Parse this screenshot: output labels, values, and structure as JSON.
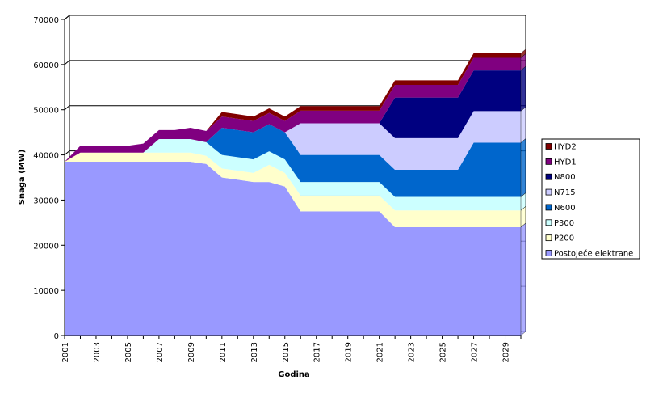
{
  "chart_data": {
    "type": "area",
    "stacked": true,
    "title": "",
    "xlabel": "Godina",
    "ylabel": "Snaga (MW)",
    "ylim": [
      0,
      70000
    ],
    "yticks": [
      0,
      10000,
      20000,
      30000,
      40000,
      50000,
      60000,
      70000
    ],
    "ytick_labels": [
      "0",
      "10000",
      "20000",
      "30000",
      "40000",
      "50000",
      "60000",
      "70000"
    ],
    "x": [
      2001,
      2002,
      2003,
      2004,
      2005,
      2006,
      2007,
      2008,
      2009,
      2010,
      2011,
      2012,
      2013,
      2014,
      2015,
      2016,
      2017,
      2018,
      2019,
      2020,
      2021,
      2022,
      2023,
      2024,
      2025,
      2026,
      2027,
      2028,
      2029,
      2030
    ],
    "xtick_labels": [
      "2001",
      "2003",
      "2005",
      "2007",
      "2009",
      "2011",
      "2013",
      "2015",
      "2017",
      "2019",
      "2021",
      "2023",
      "2025",
      "2027",
      "2029"
    ],
    "grid": "horizontal",
    "legend_position": "right",
    "series": [
      {
        "name": "Postojeće elektrane",
        "color": "#9999ff",
        "values": [
          38500,
          38500,
          38500,
          38500,
          38500,
          38500,
          38500,
          38500,
          38500,
          38000,
          35000,
          34500,
          34000,
          34000,
          33000,
          27500,
          27500,
          27500,
          27500,
          27500,
          27500,
          24000,
          24000,
          24000,
          24000,
          24000,
          24000,
          24000,
          24000,
          24000
        ]
      },
      {
        "name": "P200",
        "color": "#ffffcc",
        "values": [
          0,
          2000,
          2000,
          2000,
          2000,
          2000,
          2000,
          2000,
          2000,
          1800,
          2000,
          2000,
          2000,
          3800,
          3000,
          3500,
          3500,
          3500,
          3500,
          3500,
          3500,
          3700,
          3700,
          3700,
          3700,
          3700,
          3700,
          3700,
          3700,
          3700
        ]
      },
      {
        "name": "P300",
        "color": "#ccffff",
        "values": [
          0,
          0,
          0,
          0,
          0,
          0,
          3000,
          3000,
          3000,
          3000,
          3000,
          3000,
          3000,
          3000,
          3000,
          3000,
          3000,
          3000,
          3000,
          3000,
          3000,
          3000,
          3000,
          3000,
          3000,
          3000,
          3000,
          3000,
          3000,
          3000
        ]
      },
      {
        "name": "N600",
        "color": "#0066cc",
        "values": [
          0,
          0,
          0,
          0,
          0,
          0,
          0,
          0,
          0,
          0,
          6000,
          6000,
          6000,
          6000,
          6000,
          6000,
          6000,
          6000,
          6000,
          6000,
          6000,
          6000,
          6000,
          6000,
          6000,
          6000,
          12000,
          12000,
          12000,
          12000
        ]
      },
      {
        "name": "N715",
        "color": "#ccccff",
        "values": [
          0,
          0,
          0,
          0,
          0,
          0,
          0,
          0,
          0,
          0,
          0,
          0,
          0,
          0,
          0,
          7000,
          7000,
          7000,
          7000,
          7000,
          7000,
          7000,
          7000,
          7000,
          7000,
          7000,
          7000,
          7000,
          7000,
          7000
        ]
      },
      {
        "name": "N800",
        "color": "#000080",
        "values": [
          0,
          0,
          0,
          0,
          0,
          0,
          0,
          0,
          0,
          0,
          0,
          0,
          0,
          0,
          0,
          0,
          0,
          0,
          0,
          0,
          0,
          9000,
          9000,
          9000,
          9000,
          9000,
          9000,
          9000,
          9000,
          9000
        ]
      },
      {
        "name": "HYD1",
        "color": "#800080",
        "values": [
          0,
          1500,
          1500,
          1500,
          1500,
          2000,
          2000,
          2000,
          2500,
          2500,
          2500,
          2500,
          2500,
          2500,
          2500,
          2800,
          2800,
          2800,
          2800,
          2800,
          2800,
          2800,
          2800,
          2800,
          2800,
          2800,
          2800,
          2800,
          2800,
          2800
        ]
      },
      {
        "name": "HYD2",
        "color": "#800000",
        "values": [
          0,
          0,
          0,
          0,
          0,
          0,
          0,
          0,
          0,
          0,
          1000,
          1000,
          1000,
          1000,
          1000,
          1000,
          1000,
          1000,
          1000,
          1000,
          1000,
          1000,
          1000,
          1000,
          1000,
          1000,
          1000,
          1000,
          1000,
          1000
        ]
      }
    ]
  }
}
